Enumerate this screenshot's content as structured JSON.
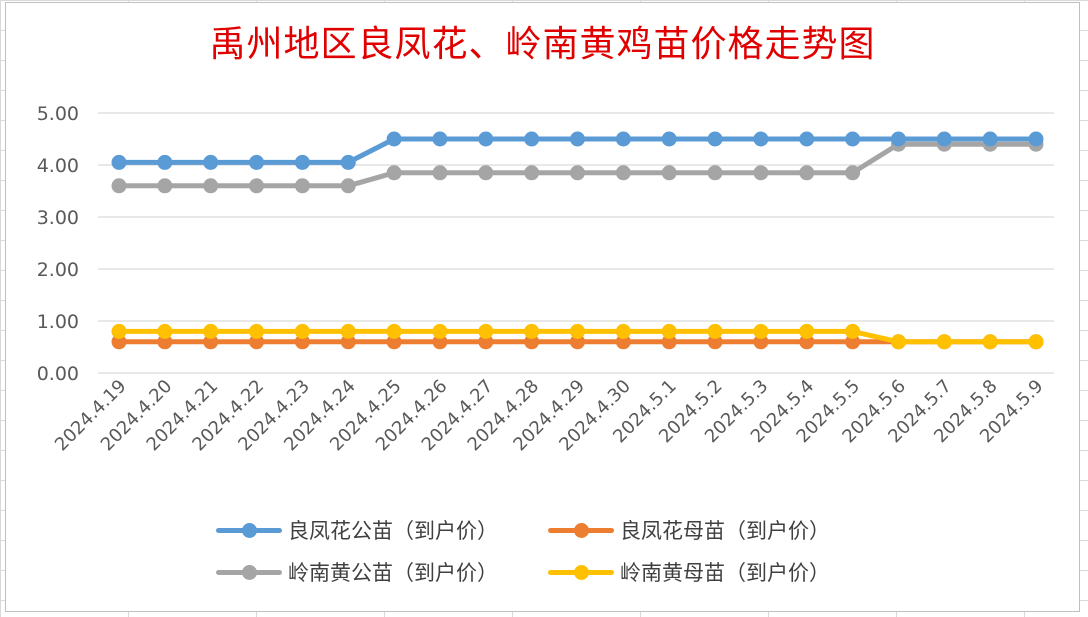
{
  "chart_data": {
    "type": "line",
    "title": "禹州地区良凤花、岭南黄鸡苗价格走势图",
    "ylim": [
      0,
      5
    ],
    "yticks": [
      "0.00",
      "1.00",
      "2.00",
      "3.00",
      "4.00",
      "5.00"
    ],
    "grid": true,
    "legend_position": "bottom",
    "categories": [
      "2024.4.19",
      "2024.4.20",
      "2024.4.21",
      "2024.4.22",
      "2024.4.23",
      "2024.4.24",
      "2024.4.25",
      "2024.4.26",
      "2024.4.27",
      "2024.4.28",
      "2024.4.29",
      "2024.4.30",
      "2024.5.1",
      "2024.5.2",
      "2024.5.3",
      "2024.5.4",
      "2024.5.5",
      "2024.5.6",
      "2024.5.7",
      "2024.5.8",
      "2024.5.9"
    ],
    "series": [
      {
        "name": "良凤花公苗（到户价）",
        "color": "#5b9bd5",
        "values": [
          4.05,
          4.05,
          4.05,
          4.05,
          4.05,
          4.05,
          4.5,
          4.5,
          4.5,
          4.5,
          4.5,
          4.5,
          4.5,
          4.5,
          4.5,
          4.5,
          4.5,
          4.5,
          4.5,
          4.5,
          4.5
        ]
      },
      {
        "name": "良凤花母苗（到户价）",
        "color": "#ed7d31",
        "values": [
          0.6,
          0.6,
          0.6,
          0.6,
          0.6,
          0.6,
          0.6,
          0.6,
          0.6,
          0.6,
          0.6,
          0.6,
          0.6,
          0.6,
          0.6,
          0.6,
          0.6,
          0.6,
          0.6,
          0.6,
          0.6
        ]
      },
      {
        "name": "岭南黄公苗（到户价）",
        "color": "#a5a5a5",
        "values": [
          3.6,
          3.6,
          3.6,
          3.6,
          3.6,
          3.6,
          3.85,
          3.85,
          3.85,
          3.85,
          3.85,
          3.85,
          3.85,
          3.85,
          3.85,
          3.85,
          3.85,
          4.4,
          4.4,
          4.4,
          4.4
        ]
      },
      {
        "name": "岭南黄母苗（到户价）",
        "color": "#ffc000",
        "values": [
          0.8,
          0.8,
          0.8,
          0.8,
          0.8,
          0.8,
          0.8,
          0.8,
          0.8,
          0.8,
          0.8,
          0.8,
          0.8,
          0.8,
          0.8,
          0.8,
          0.8,
          0.6,
          0.6,
          0.6,
          0.6
        ]
      }
    ]
  }
}
